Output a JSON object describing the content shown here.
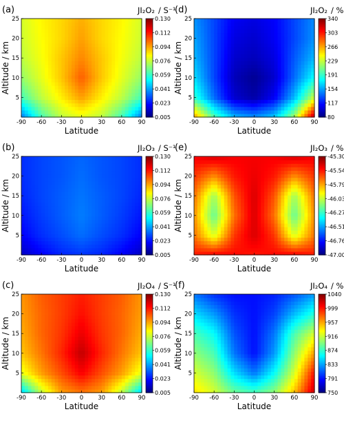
{
  "chart_data": [
    {
      "type": "heatmap",
      "panel": "(a)",
      "quantity": "JI₂O₂",
      "unit": "/ S⁻¹",
      "xlabel": "Latitude",
      "ylabel": "Altitude / km",
      "xticks": [
        "-90",
        "-60",
        "-30",
        "0",
        "30",
        "60",
        "90"
      ],
      "yticks": [
        "5",
        "10",
        "15",
        "20",
        "25"
      ],
      "xlim": [
        -90,
        90
      ],
      "ylim": [
        0,
        25
      ],
      "colorbar": {
        "min": 0.005,
        "max": 0.13,
        "ticks": [
          "0.130",
          "0.112",
          "0.094",
          "0.076",
          "0.059",
          "0.041",
          "0.023",
          "0.005"
        ]
      },
      "lat": [
        -90,
        -60,
        -30,
        0,
        30,
        60,
        90
      ],
      "alt": [
        0,
        5,
        10,
        15,
        20,
        25
      ],
      "values": [
        [
          0.035,
          0.06,
          0.075,
          0.08,
          0.075,
          0.06,
          0.035
        ],
        [
          0.06,
          0.075,
          0.085,
          0.095,
          0.085,
          0.075,
          0.06
        ],
        [
          0.07,
          0.08,
          0.09,
          0.103,
          0.09,
          0.08,
          0.07
        ],
        [
          0.075,
          0.082,
          0.09,
          0.098,
          0.09,
          0.082,
          0.075
        ],
        [
          0.077,
          0.083,
          0.088,
          0.095,
          0.088,
          0.083,
          0.077
        ],
        [
          0.078,
          0.084,
          0.088,
          0.093,
          0.088,
          0.084,
          0.078
        ]
      ]
    },
    {
      "type": "heatmap",
      "panel": "(d)",
      "quantity": "JI₂O₂",
      "unit": "/ %",
      "xlabel": "Latitude",
      "ylabel": "Altitude / km",
      "xticks": [
        "-90",
        "-60",
        "-30",
        "0",
        "30",
        "60",
        "90"
      ],
      "yticks": [
        "5",
        "10",
        "15",
        "20",
        "25"
      ],
      "xlim": [
        -90,
        90
      ],
      "ylim": [
        0,
        25
      ],
      "colorbar": {
        "min": 80,
        "max": 340,
        "ticks": [
          "340",
          "303",
          "266",
          "229",
          "191",
          "154",
          "117",
          "80"
        ]
      },
      "lat": [
        -90,
        -60,
        -30,
        0,
        30,
        60,
        90
      ],
      "alt": [
        0,
        5,
        10,
        15,
        20,
        25
      ],
      "values": [
        [
          270,
          200,
          160,
          150,
          165,
          220,
          330
        ],
        [
          190,
          140,
          100,
          90,
          110,
          160,
          230
        ],
        [
          170,
          130,
          95,
          85,
          100,
          140,
          180
        ],
        [
          160,
          130,
          100,
          95,
          105,
          135,
          160
        ],
        [
          155,
          130,
          105,
          100,
          110,
          130,
          150
        ],
        [
          150,
          130,
          110,
          105,
          112,
          130,
          148
        ]
      ]
    },
    {
      "type": "heatmap",
      "panel": "(b)",
      "quantity": "JI₂O₃",
      "unit": "/ S⁻¹",
      "xlabel": "Latitude",
      "ylabel": "Altitude / km",
      "xticks": [
        "-90",
        "-60",
        "-30",
        "0",
        "30",
        "60",
        "90"
      ],
      "yticks": [
        "5",
        "10",
        "15",
        "20",
        "25"
      ],
      "xlim": [
        -90,
        90
      ],
      "ylim": [
        0,
        25
      ],
      "colorbar": {
        "min": 0.005,
        "max": 0.13,
        "ticks": [
          "0.130",
          "0.112",
          "0.094",
          "0.076",
          "0.059",
          "0.041",
          "0.023",
          "0.005"
        ]
      },
      "lat": [
        -90,
        -60,
        -30,
        0,
        30,
        60,
        90
      ],
      "alt": [
        0,
        5,
        10,
        15,
        20,
        25
      ],
      "values": [
        [
          0.013,
          0.02,
          0.025,
          0.027,
          0.025,
          0.02,
          0.013
        ],
        [
          0.02,
          0.026,
          0.03,
          0.034,
          0.03,
          0.026,
          0.02
        ],
        [
          0.023,
          0.028,
          0.032,
          0.036,
          0.032,
          0.028,
          0.023
        ],
        [
          0.025,
          0.029,
          0.032,
          0.035,
          0.032,
          0.029,
          0.025
        ],
        [
          0.026,
          0.029,
          0.031,
          0.034,
          0.031,
          0.029,
          0.026
        ],
        [
          0.026,
          0.029,
          0.031,
          0.033,
          0.031,
          0.029,
          0.026
        ]
      ]
    },
    {
      "type": "heatmap",
      "panel": "(e)",
      "quantity": "JI₂O₃",
      "unit": "/ %",
      "xlabel": "Latitude",
      "ylabel": "Altitude / km",
      "xticks": [
        "-90",
        "-60",
        "-30",
        "0",
        "30",
        "60",
        "90"
      ],
      "yticks": [
        "5",
        "10",
        "15",
        "20",
        "25"
      ],
      "xlim": [
        -90,
        90
      ],
      "ylim": [
        0,
        25
      ],
      "colorbar": {
        "min": -47.0,
        "max": -45.3,
        "ticks": [
          "-45.30",
          "-45.54",
          "-45.79",
          "-46.03",
          "-46.27",
          "-46.51",
          "-46.76",
          "-47.00"
        ]
      },
      "lat": [
        -90,
        -60,
        -30,
        0,
        30,
        60,
        90
      ],
      "alt": [
        0,
        5,
        10,
        15,
        20,
        25
      ],
      "values": [
        [
          -45.55,
          -45.5,
          -45.52,
          -45.55,
          -45.52,
          -45.5,
          -45.55
        ],
        [
          -45.7,
          -46.0,
          -45.6,
          -45.45,
          -45.6,
          -46.0,
          -45.7
        ],
        [
          -45.75,
          -46.2,
          -45.7,
          -45.45,
          -45.7,
          -46.2,
          -45.75
        ],
        [
          -45.7,
          -46.1,
          -45.65,
          -45.45,
          -45.65,
          -46.1,
          -45.7
        ],
        [
          -45.6,
          -45.75,
          -45.55,
          -45.48,
          -45.55,
          -45.75,
          -45.6
        ],
        [
          -45.5,
          -45.45,
          -45.5,
          -45.5,
          -45.5,
          -45.45,
          -45.5
        ]
      ]
    },
    {
      "type": "heatmap",
      "panel": "(c)",
      "quantity": "JI₂O₄",
      "unit": "/ S⁻¹",
      "xlabel": "Latitude",
      "ylabel": "Altitude / km",
      "xticks": [
        "-90",
        "-60",
        "-30",
        "0",
        "30",
        "60",
        "90"
      ],
      "yticks": [
        "5",
        "10",
        "15",
        "20",
        "25"
      ],
      "xlim": [
        -90,
        90
      ],
      "ylim": [
        0,
        25
      ],
      "colorbar": {
        "min": 0.005,
        "max": 0.13,
        "ticks": [
          "0.130",
          "0.112",
          "0.094",
          "0.076",
          "0.059",
          "0.041",
          "0.023",
          "0.005"
        ]
      },
      "lat": [
        -90,
        -60,
        -30,
        0,
        30,
        60,
        90
      ],
      "alt": [
        0,
        5,
        10,
        15,
        20,
        25
      ],
      "values": [
        [
          0.045,
          0.075,
          0.095,
          0.1,
          0.095,
          0.075,
          0.045
        ],
        [
          0.08,
          0.095,
          0.105,
          0.115,
          0.105,
          0.095,
          0.08
        ],
        [
          0.09,
          0.1,
          0.11,
          0.122,
          0.11,
          0.1,
          0.09
        ],
        [
          0.093,
          0.102,
          0.108,
          0.117,
          0.108,
          0.102,
          0.093
        ],
        [
          0.095,
          0.102,
          0.107,
          0.113,
          0.107,
          0.102,
          0.095
        ],
        [
          0.096,
          0.103,
          0.107,
          0.111,
          0.107,
          0.103,
          0.096
        ]
      ]
    },
    {
      "type": "heatmap",
      "panel": "(f)",
      "quantity": "JI₂O₄",
      "unit": "/ %",
      "xlabel": "Latitude",
      "ylabel": "Altitude / km",
      "xticks": [
        "-90",
        "-60",
        "-30",
        "0",
        "30",
        "60",
        "90"
      ],
      "yticks": [
        "5",
        "10",
        "15",
        "20",
        "25"
      ],
      "xlim": [
        -90,
        90
      ],
      "ylim": [
        0,
        25
      ],
      "colorbar": {
        "min": 750,
        "max": 1040,
        "ticks": [
          "1040",
          "999",
          "957",
          "916",
          "874",
          "833",
          "791",
          "750"
        ]
      },
      "lat": [
        -90,
        -60,
        -30,
        0,
        30,
        60,
        90
      ],
      "alt": [
        0,
        5,
        10,
        15,
        20,
        25
      ],
      "values": [
        [
          940,
          920,
          890,
          880,
          900,
          950,
          1020
        ],
        [
          920,
          900,
          850,
          820,
          860,
          920,
          1000
        ],
        [
          900,
          880,
          820,
          790,
          830,
          900,
          960
        ],
        [
          880,
          860,
          810,
          790,
          820,
          880,
          920
        ],
        [
          850,
          830,
          800,
          790,
          805,
          840,
          870
        ],
        [
          820,
          800,
          790,
          790,
          795,
          810,
          830
        ]
      ]
    }
  ]
}
